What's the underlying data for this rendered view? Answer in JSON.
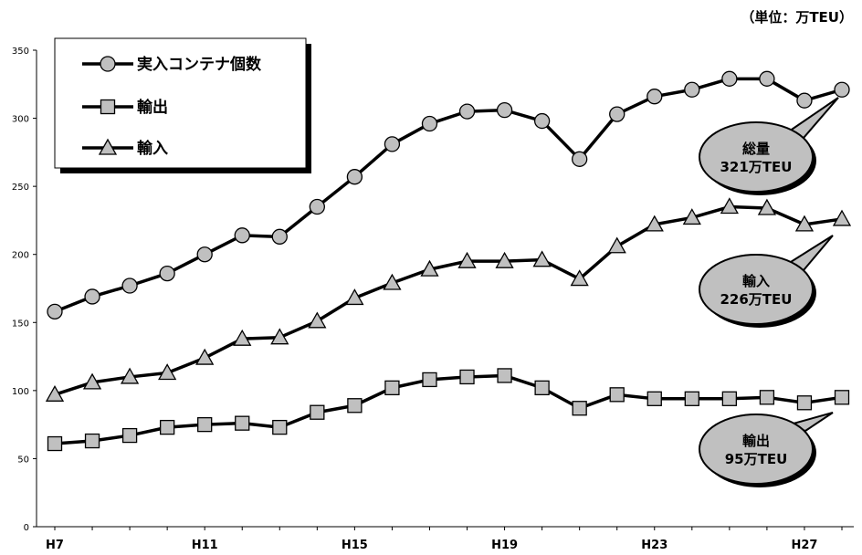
{
  "unit_label": "（単位：万TEU）",
  "chart_data": {
    "type": "line",
    "ylim": [
      0,
      350
    ],
    "yticks": [
      0,
      50,
      100,
      150,
      200,
      250,
      300,
      350
    ],
    "x_labels_shown": [
      "H7",
      "H11",
      "H15",
      "H19",
      "H23",
      "H27"
    ],
    "x": [
      "H7",
      "H8",
      "H9",
      "H10",
      "H11",
      "H12",
      "H13",
      "H14",
      "H15",
      "H16",
      "H17",
      "H18",
      "H19",
      "H20",
      "H21",
      "H22",
      "H23",
      "H24",
      "H25",
      "H26",
      "H27",
      "H28"
    ],
    "legend_position": "top-left",
    "series": [
      {
        "name": "実入コンテナ個数",
        "marker": "circle",
        "values": [
          158,
          169,
          177,
          186,
          200,
          214,
          213,
          235,
          257,
          281,
          296,
          305,
          306,
          298,
          270,
          303,
          316,
          321,
          329,
          329,
          313,
          321
        ]
      },
      {
        "name": "輸出",
        "marker": "square",
        "values": [
          61,
          63,
          67,
          73,
          75,
          76,
          73,
          84,
          89,
          102,
          108,
          110,
          111,
          102,
          87,
          97,
          94,
          94,
          94,
          95,
          91,
          95
        ]
      },
      {
        "name": "輸入",
        "marker": "triangle",
        "values": [
          97,
          106,
          110,
          113,
          124,
          138,
          139,
          151,
          168,
          179,
          189,
          195,
          195,
          196,
          182,
          206,
          222,
          227,
          235,
          234,
          222,
          226
        ]
      }
    ],
    "callouts": [
      {
        "lines": [
          "総量",
          "321万TEU"
        ]
      },
      {
        "lines": [
          "輸入",
          "226万TEU"
        ]
      },
      {
        "lines": [
          "輸出",
          "95万TEU"
        ]
      }
    ]
  }
}
